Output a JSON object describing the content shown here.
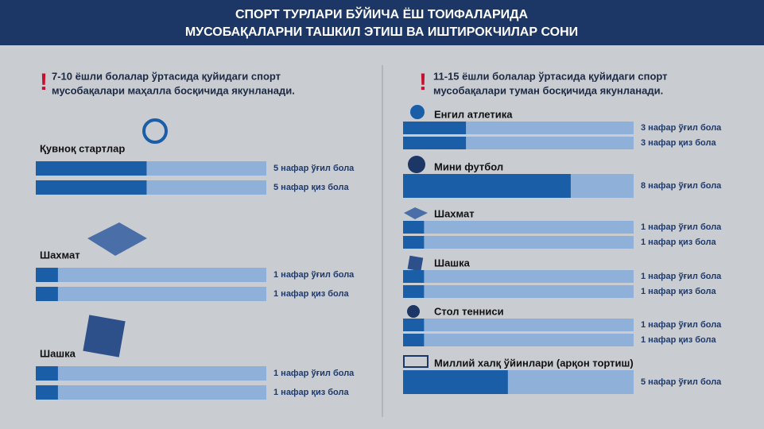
{
  "header": {
    "title_lines": [
      "СПОРТ ТУРЛАРИ БЎЙИЧА ЁШ ТОИФАЛАРИДА",
      "МУСОБАҚАЛАРНИ ТАШКИЛ ЭТИШ ВА ИШТИРОКЧИЛАР СОНИ"
    ]
  },
  "panels": [
    {
      "mark": "!",
      "note": [
        "7-10 ёшли болалар ўртасида қуйидаги спорт",
        "мусобақалари маҳалла босқичида якунланади."
      ],
      "xlim": [
        0,
        10.4
      ],
      "sports": [
        {
          "name": "Қувноқ стартлар",
          "bars": [
            {
              "value": 5,
              "label": "5 нафар ўғил бола"
            },
            {
              "value": 5,
              "label": "5 нафар қиз бола"
            }
          ]
        },
        {
          "name": "Шахмат",
          "bars": [
            {
              "value": 1,
              "label": "1 нафар ўғил бола"
            },
            {
              "value": 1,
              "label": "1 нафар қиз бола"
            }
          ]
        },
        {
          "name": "Шашка",
          "bars": [
            {
              "value": 1,
              "label": "1 нафар ўғил бола"
            },
            {
              "value": 1,
              "label": "1 нафар қиз бола"
            }
          ]
        }
      ]
    },
    {
      "mark": "!",
      "note": [
        "11-15 ёшли болалар ўртасида қуйидаги спорт",
        "мусобақалари туман босқичида якунланади."
      ],
      "xlim": [
        0,
        11
      ],
      "sports": [
        {
          "name": "Енгил атлетика",
          "bars": [
            {
              "value": 3,
              "label": "3 нафар ўғил бола"
            },
            {
              "value": 3,
              "label": "3 нафар қиз бола"
            }
          ]
        },
        {
          "name": "Мини футбол",
          "bars": [
            {
              "value": 8,
              "label": "8 нафар ўғил бола"
            }
          ]
        },
        {
          "name": "Шахмат",
          "bars": [
            {
              "value": 1,
              "label": "1 нафар ўғил бола"
            },
            {
              "value": 1,
              "label": "1 нафар қиз бола"
            }
          ]
        },
        {
          "name": "Шашка",
          "bars": [
            {
              "value": 1,
              "label": "1 нафар ўғил бола"
            },
            {
              "value": 1,
              "label": "1 нафар қиз бола"
            }
          ]
        },
        {
          "name": "Стол тенниси",
          "bars": [
            {
              "value": 1,
              "label": "1 нафар ўғил бола"
            },
            {
              "value": 1,
              "label": "1 нафар қиз бола"
            }
          ]
        },
        {
          "name": "Миллий халқ ўйинлари (арқон тортиш)",
          "bars": [
            {
              "value": 5,
              "label": "5 нафар ўғил бола"
            }
          ]
        }
      ]
    }
  ]
}
